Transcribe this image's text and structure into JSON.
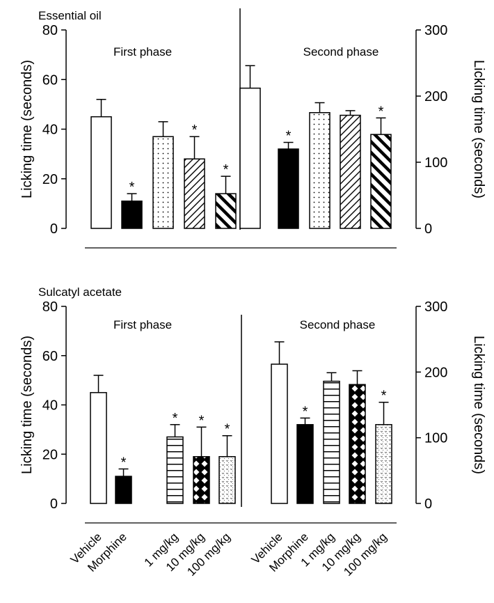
{
  "chart_data": [
    {
      "type": "bar",
      "title": "Essential oil",
      "ylabel_left": "Licking time (seconds)",
      "ylabel_right": "Licking time (seconds)",
      "ylim_left": [
        0,
        80
      ],
      "ylim_right": [
        0,
        300
      ],
      "yticks_left": [
        "0",
        "20",
        "40",
        "60",
        "80"
      ],
      "yticks_right": [
        "0",
        "100",
        "200",
        "300"
      ],
      "panels": [
        {
          "label": "First phase",
          "axis": "left",
          "categories": [
            "Vehicle",
            "Morphine",
            "1 mg/kg",
            "10 mg/kg",
            "100 mg/kg"
          ],
          "values": [
            45,
            11,
            37,
            28,
            14
          ],
          "errors": [
            7,
            3,
            6,
            9,
            7
          ],
          "significant": [
            false,
            true,
            false,
            true,
            true
          ],
          "patterns": [
            "white",
            "black",
            "dots",
            "diag-thin",
            "diag-thick"
          ]
        },
        {
          "label": "Second phase",
          "axis": "right",
          "categories": [
            "Vehicle",
            "Morphine",
            "1 mg/kg",
            "10 mg/kg",
            "100 mg/kg"
          ],
          "values": [
            212,
            120,
            175,
            171,
            142
          ],
          "errors": [
            34,
            10,
            15,
            7,
            25
          ],
          "significant": [
            false,
            true,
            false,
            false,
            true
          ],
          "patterns": [
            "white",
            "black",
            "dots",
            "diag-thin",
            "diag-thick"
          ]
        }
      ]
    },
    {
      "type": "bar",
      "title": "Sulcatyl acetate",
      "ylabel_left": "Licking time (seconds)",
      "ylabel_right": "Licking time (seconds)",
      "ylim_left": [
        0,
        80
      ],
      "ylim_right": [
        0,
        300
      ],
      "yticks_left": [
        "0",
        "20",
        "40",
        "60",
        "80"
      ],
      "yticks_right": [
        "0",
        "100",
        "200",
        "300"
      ],
      "panels": [
        {
          "label": "First phase",
          "axis": "left",
          "categories": [
            "Vehicle",
            "Morphine",
            "1 mg/kg",
            "10 mg/kg",
            "100 mg/kg"
          ],
          "values": [
            45,
            11,
            27,
            19,
            19
          ],
          "errors": [
            7,
            3,
            5,
            12,
            8.5
          ],
          "significant": [
            false,
            true,
            true,
            true,
            true
          ],
          "patterns": [
            "white",
            "black",
            "hlines",
            "checker",
            "speckle"
          ]
        },
        {
          "label": "Second phase",
          "axis": "right",
          "categories": [
            "Vehicle",
            "Morphine",
            "1 mg/kg",
            "10 mg/kg",
            "100 mg/kg"
          ],
          "values": [
            212,
            120,
            186,
            181,
            120
          ],
          "errors": [
            34,
            10,
            13,
            21,
            34
          ],
          "significant": [
            false,
            true,
            false,
            false,
            true
          ],
          "patterns": [
            "white",
            "black",
            "hlines",
            "checker",
            "speckle"
          ]
        }
      ]
    }
  ],
  "x_labels_first": [
    "Vehicle",
    "Morphine",
    "1 mg/kg",
    "10 mg/kg",
    "100 mg/kg"
  ],
  "x_labels_second": [
    "Vehicle",
    "Morphine",
    "1 mg/kg",
    "10 mg/kg",
    "100 mg/kg"
  ]
}
